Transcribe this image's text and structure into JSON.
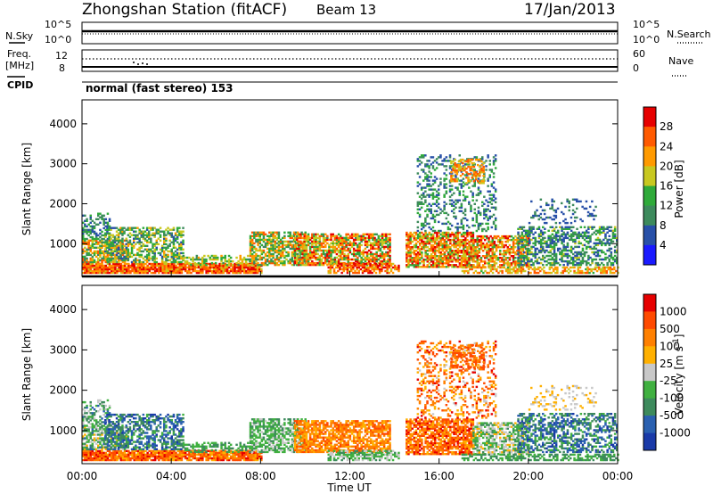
{
  "header": {
    "station": "Zhongshan Station (fitACF)",
    "beam": "Beam 13",
    "date": "17/Jan/2013"
  },
  "top_panels": {
    "nsky_label": "N.Sky",
    "nsearch_label": "N.Search",
    "noise_ticks_left": [
      "10^5",
      "10^0"
    ],
    "noise_ticks_right": [
      "10^5",
      "10^0"
    ],
    "freq_label_1": "Freq.",
    "freq_label_2": "[MHz]",
    "freq_ticks_left": [
      "12",
      "8"
    ],
    "nave_ticks_right": [
      "60",
      "0"
    ],
    "nave_label": "Nave",
    "cpid_label": "CPID",
    "cpid_text": "normal (fast stereo) 153"
  },
  "colors": {
    "power_scale": [
      "#1a1aff",
      "#2850a8",
      "#3d8a5c",
      "#2faa3a",
      "#c8c820",
      "#ff9a00",
      "#ff5a00",
      "#e60000"
    ],
    "velocity_scale": [
      "#1a3aa8",
      "#2a60b0",
      "#3d8a5c",
      "#40b040",
      "#c8c8c8",
      "#ffb000",
      "#ff8000",
      "#ff4a00",
      "#e60000"
    ]
  },
  "chart_data": [
    {
      "type": "heatmap",
      "name_hint": "power",
      "title": "",
      "xlabel": "Time UT",
      "ylabel": "Slant Range [km]",
      "xlim": [
        0,
        24
      ],
      "ylim": [
        180,
        4600
      ],
      "x_ticks": [
        "00:00",
        "04:00",
        "08:00",
        "12:00",
        "16:00",
        "20:00",
        "00:00"
      ],
      "y_ticks": [
        "1000",
        "2000",
        "3000",
        "4000"
      ],
      "colorbar_label": "Power [dB]",
      "colorbar_ticks": [
        "4",
        "8",
        "12",
        "16",
        "20",
        "24",
        "28"
      ],
      "colorbar_range": [
        0,
        30
      ]
    },
    {
      "type": "heatmap",
      "name_hint": "velocity",
      "title": "",
      "xlabel": "Time UT",
      "ylabel": "Slant Range [km]",
      "xlim": [
        0,
        24
      ],
      "ylim": [
        180,
        4600
      ],
      "x_ticks": [
        "00:00",
        "04:00",
        "08:00",
        "12:00",
        "16:00",
        "20:00",
        "00:00"
      ],
      "y_ticks": [
        "1000",
        "2000",
        "3000",
        "4000"
      ],
      "colorbar_label": "Velocity [m s",
      "colorbar_label_sup": "-1",
      "colorbar_label_end": "]",
      "colorbar_ticks": [
        "1000",
        "500",
        "100",
        "25",
        "-25",
        "-100",
        "-500",
        "-1000"
      ]
    }
  ],
  "scatter_regions": [
    {
      "t0": 0.0,
      "t1": 8.0,
      "r0": 250,
      "r1": 520,
      "d": 0.9,
      "p": [
        18,
        30
      ],
      "v": [
        5,
        8
      ]
    },
    {
      "t0": 0.0,
      "t1": 2.0,
      "r0": 520,
      "r1": 1100,
      "d": 0.7,
      "p": [
        8,
        26
      ],
      "v": [
        1,
        5
      ]
    },
    {
      "t0": 0.0,
      "t1": 1.2,
      "r0": 1100,
      "r1": 1750,
      "d": 0.45,
      "p": [
        4,
        14
      ],
      "v": [
        1,
        4
      ]
    },
    {
      "t0": 1.0,
      "t1": 4.5,
      "r0": 520,
      "r1": 1400,
      "d": 0.55,
      "p": [
        6,
        20
      ],
      "v": [
        0,
        3
      ]
    },
    {
      "t0": 4.5,
      "t1": 7.5,
      "r0": 450,
      "r1": 700,
      "d": 0.45,
      "p": [
        10,
        20
      ],
      "v": [
        2,
        3
      ]
    },
    {
      "t0": 7.5,
      "t1": 10.0,
      "r0": 450,
      "r1": 1300,
      "d": 0.65,
      "p": [
        8,
        24
      ],
      "v": [
        2,
        4
      ]
    },
    {
      "t0": 9.5,
      "t1": 13.8,
      "r0": 450,
      "r1": 1250,
      "d": 0.75,
      "p": [
        10,
        30
      ],
      "v": [
        5,
        7
      ]
    },
    {
      "t0": 11.0,
      "t1": 14.2,
      "r0": 250,
      "r1": 500,
      "d": 0.6,
      "p": [
        18,
        30
      ],
      "v": [
        2,
        4
      ]
    },
    {
      "t0": 14.5,
      "t1": 17.5,
      "r0": 400,
      "r1": 1300,
      "d": 0.75,
      "p": [
        12,
        30
      ],
      "v": [
        5,
        8
      ]
    },
    {
      "t0": 15.0,
      "t1": 18.5,
      "r0": 1300,
      "r1": 3200,
      "d": 0.28,
      "p": [
        4,
        14
      ],
      "v": [
        4,
        8
      ]
    },
    {
      "t0": 16.5,
      "t1": 18.0,
      "r0": 2500,
      "r1": 3100,
      "d": 0.4,
      "p": [
        16,
        26
      ],
      "v": [
        6,
        7
      ]
    },
    {
      "t0": 17.5,
      "t1": 20.0,
      "r0": 400,
      "r1": 1200,
      "d": 0.6,
      "p": [
        12,
        30
      ],
      "v": [
        2,
        5
      ]
    },
    {
      "t0": 17.0,
      "t1": 24.0,
      "r0": 250,
      "r1": 420,
      "d": 0.55,
      "p": [
        14,
        26
      ],
      "v": [
        2,
        3
      ]
    },
    {
      "t0": 19.5,
      "t1": 24.0,
      "r0": 450,
      "r1": 1400,
      "d": 0.5,
      "p": [
        4,
        16
      ],
      "v": [
        0,
        3
      ]
    },
    {
      "t0": 20.0,
      "t1": 23.0,
      "r0": 1500,
      "r1": 2100,
      "d": 0.2,
      "p": [
        4,
        10
      ],
      "v": [
        4,
        5
      ]
    }
  ]
}
